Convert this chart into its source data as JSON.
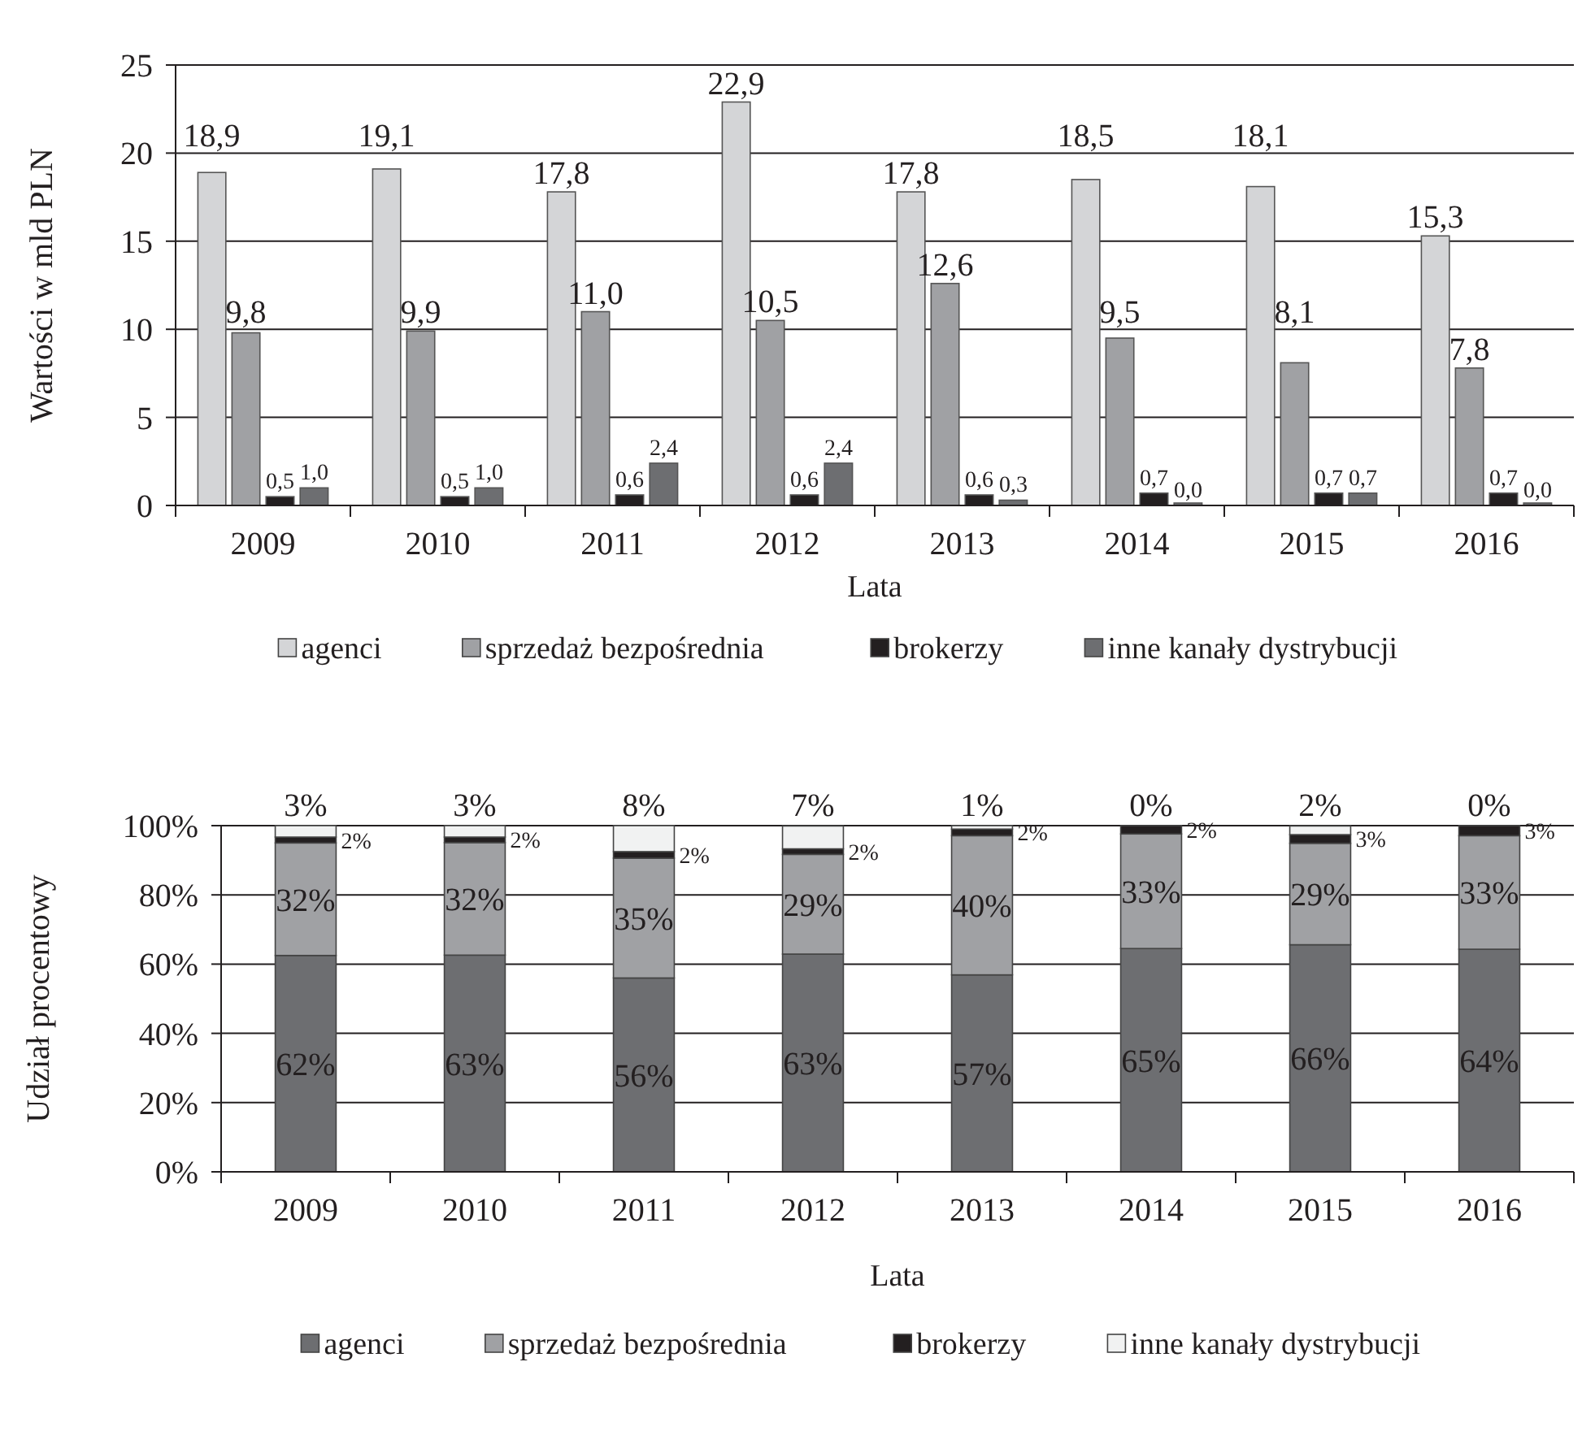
{
  "chart_data": [
    {
      "type": "bar",
      "xlabel": "Lata",
      "ylabel": "Wartości w mld PLN",
      "categories": [
        "2009",
        "2010",
        "2011",
        "2012",
        "2013",
        "2014",
        "2015",
        "2016"
      ],
      "ylim": [
        0,
        25
      ],
      "yticks": [
        0,
        5,
        10,
        15,
        20,
        25
      ],
      "grid": "y",
      "legend": "bottom",
      "series": [
        {
          "name": "agenci",
          "color": "#d4d5d7",
          "values": [
            18.9,
            19.1,
            17.8,
            22.9,
            17.8,
            18.5,
            18.1,
            15.3
          ],
          "value_labels": [
            "18,9",
            "19,1",
            "17,8",
            "22,9",
            "17,8",
            "18,5",
            "18,1",
            "15,3"
          ]
        },
        {
          "name": "sprzedaż bezpośrednia",
          "color": "#a0a1a4",
          "values": [
            9.8,
            9.9,
            11.0,
            10.5,
            12.6,
            9.5,
            8.1,
            7.8
          ],
          "value_labels": [
            "9,8",
            "9,9",
            "11,0",
            "10,5",
            "12,6",
            "9,5",
            "8,1",
            "7,8"
          ]
        },
        {
          "name": "brokerzy",
          "color": "#231f20",
          "values": [
            0.5,
            0.5,
            0.6,
            0.6,
            0.6,
            0.7,
            0.7,
            0.7
          ],
          "value_labels": [
            "0,5",
            "0,5",
            "0,6",
            "0,6",
            "0,6",
            "0,7",
            "0,7",
            "0,7"
          ]
        },
        {
          "name": "inne kanały dystrybucji",
          "color": "#6d6e71",
          "values": [
            1.0,
            1.0,
            2.4,
            2.4,
            0.3,
            0.0,
            0.7,
            0.0
          ],
          "value_labels": [
            "1,0",
            "1,0",
            "2,4",
            "2,4",
            "0,3",
            "0,0",
            "0,7",
            "0,0"
          ]
        }
      ]
    },
    {
      "type": "bar",
      "stacked": true,
      "xlabel": "Lata",
      "ylabel": "Udział procentowy",
      "categories": [
        "2009",
        "2010",
        "2011",
        "2012",
        "2013",
        "2014",
        "2015",
        "2016"
      ],
      "ylim": [
        0,
        100
      ],
      "yticks": [
        {
          "value": 0,
          "label": "0%"
        },
        {
          "value": 20,
          "label": "20%"
        },
        {
          "value": 40,
          "label": "40%"
        },
        {
          "value": 60,
          "label": "60%"
        },
        {
          "value": 80,
          "label": "80%"
        },
        {
          "value": 100,
          "label": "100%"
        }
      ],
      "grid": "y",
      "legend": "bottom",
      "series": [
        {
          "name": "agenci",
          "color": "#6d6e71",
          "values": [
            62.5,
            62.6,
            56.0,
            62.9,
            56.9,
            64.5,
            65.6,
            64.3
          ],
          "value_labels": [
            "62%",
            "63%",
            "56%",
            "63%",
            "57%",
            "65%",
            "66%",
            "64%"
          ]
        },
        {
          "name": "sprzedaż bezpośrednia",
          "color": "#a0a1a4",
          "values": [
            32.5,
            32.5,
            34.6,
            28.8,
            40.2,
            33.1,
            29.3,
            32.8
          ],
          "value_labels": [
            "32%",
            "32%",
            "35%",
            "29%",
            "40%",
            "33%",
            "29%",
            "33%"
          ]
        },
        {
          "name": "brokerzy",
          "color": "#231f20",
          "values": [
            1.7,
            1.6,
            1.9,
            1.6,
            1.9,
            2.4,
            2.5,
            2.9
          ],
          "value_labels": [
            "2%",
            "2%",
            "2%",
            "2%",
            "2%",
            "2%",
            "3%",
            "3%"
          ]
        },
        {
          "name": "inne kanały dystrybucji",
          "color": "#f1f2f2",
          "values": [
            3.3,
            3.3,
            7.5,
            6.6,
            1.0,
            0,
            2.5,
            0
          ],
          "value_labels": [
            "3%",
            "3%",
            "8%",
            "7%",
            "1%",
            "0%",
            "2%",
            "0%"
          ]
        }
      ]
    }
  ]
}
